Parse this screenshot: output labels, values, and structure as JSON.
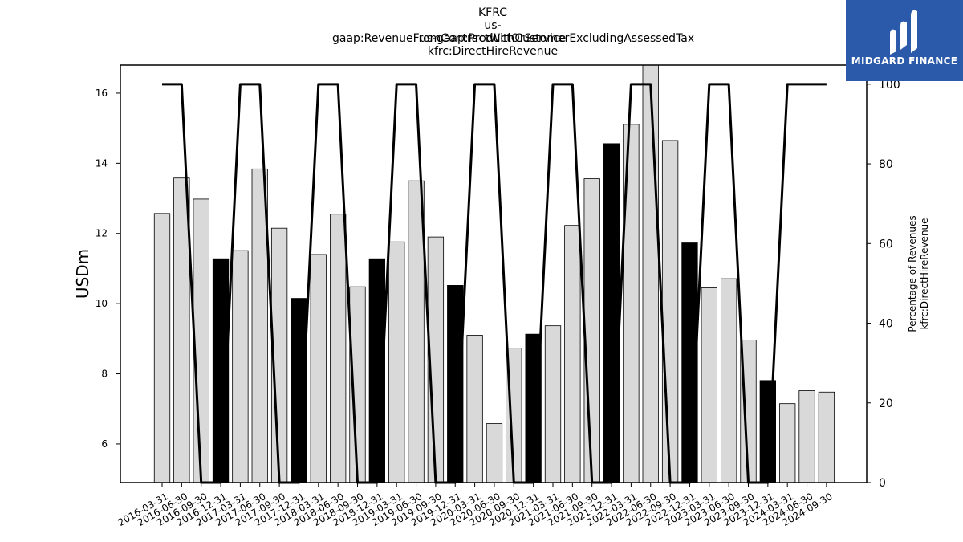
{
  "titles": {
    "line1": "KFRC",
    "line2": "us-gaap:RevenueFromContractWithCustomerExcludingAssessedTax",
    "line3": "us-gaap:ProductOrService",
    "line4": "kfrc:DirectHireRevenue"
  },
  "logo": {
    "text": "MIDGARD FINANCE",
    "color": "#2b5aab"
  },
  "chart_data": {
    "type": "bar",
    "categories": [
      "2016-03-31",
      "2016-06-30",
      "2016-09-30",
      "2016-12-31",
      "2017-03-31",
      "2017-06-30",
      "2017-09-30",
      "2017-12-31",
      "2018-03-31",
      "2018-06-30",
      "2018-09-30",
      "2018-12-31",
      "2019-03-31",
      "2019-06-30",
      "2019-09-30",
      "2019-12-31",
      "2020-03-31",
      "2020-06-30",
      "2020-09-30",
      "2020-12-31",
      "2021-03-31",
      "2021-06-30",
      "2021-09-30",
      "2021-12-31",
      "2022-03-31",
      "2022-06-30",
      "2022-09-30",
      "2022-12-31",
      "2023-03-31",
      "2023-06-30",
      "2023-09-30",
      "2023-12-31",
      "2024-03-31",
      "2024-06-30",
      "2024-09-30"
    ],
    "values": [
      12.57,
      13.58,
      12.98,
      11.28,
      11.51,
      13.84,
      12.15,
      10.15,
      11.4,
      12.55,
      10.48,
      11.28,
      11.76,
      13.5,
      11.9,
      10.52,
      9.1,
      6.58,
      8.73,
      9.13,
      9.37,
      12.23,
      13.56,
      14.56,
      15.11,
      16.9,
      14.65,
      11.73,
      10.45,
      10.71,
      8.96,
      7.81,
      7.15,
      7.52,
      7.48
    ],
    "highlight": [
      false,
      false,
      false,
      true,
      false,
      false,
      false,
      true,
      false,
      false,
      false,
      true,
      false,
      false,
      false,
      true,
      false,
      false,
      false,
      true,
      false,
      false,
      false,
      true,
      false,
      false,
      false,
      true,
      false,
      false,
      false,
      true,
      false,
      false,
      false
    ],
    "line_values": [
      100,
      100,
      0,
      0,
      100,
      100,
      0,
      0,
      100,
      100,
      0,
      0,
      100,
      100,
      0,
      0,
      100,
      100,
      0,
      0,
      100,
      100,
      0,
      0,
      100,
      100,
      0,
      0,
      100,
      100,
      0,
      0,
      100,
      100,
      100
    ],
    "ylabel": "USDm",
    "y2label_line1": "Percentage of Revenues",
    "y2label_line2": "kfrc:DirectHireRevenue",
    "ylim": [
      4.9,
      16.8
    ],
    "yticks": [
      6,
      8,
      10,
      12,
      14,
      16
    ],
    "y2lim": [
      0,
      104.8
    ],
    "y2ticks": [
      0,
      20,
      40,
      60,
      80,
      100
    ],
    "colors": {
      "bar": "#d9d9d9",
      "highlight": "#000000",
      "line": "#000000",
      "edge": "#000000"
    },
    "grid": false
  }
}
